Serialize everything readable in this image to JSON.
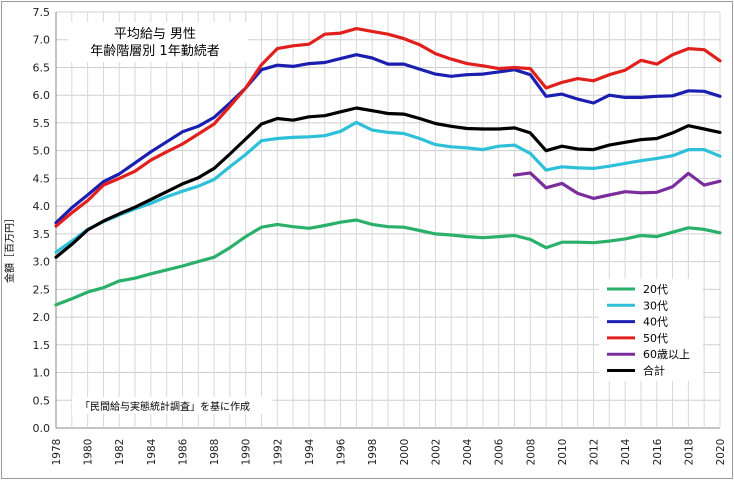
{
  "chart_data": {
    "type": "line",
    "title_line1": "平均給与 男性",
    "title_line2": "年齢階層別 1年勤続者",
    "ylabel": "金額［百万円］",
    "note": "「民間給与実態統計調査」を基に作成",
    "ylim": [
      0,
      7.5
    ],
    "ytick_step": 0.5,
    "xlim": [
      1978,
      2020
    ],
    "xtick_step": 2,
    "grid": true,
    "legend_position": "bottom-right",
    "x": [
      1978,
      1979,
      1980,
      1981,
      1982,
      1983,
      1984,
      1985,
      1986,
      1987,
      1988,
      1989,
      1990,
      1991,
      1992,
      1993,
      1994,
      1995,
      1996,
      1997,
      1998,
      1999,
      2000,
      2001,
      2002,
      2003,
      2004,
      2005,
      2006,
      2007,
      2008,
      2009,
      2010,
      2011,
      2012,
      2013,
      2014,
      2015,
      2016,
      2017,
      2018,
      2019,
      2020
    ],
    "series": [
      {
        "name": "20代",
        "color": "#2ab06a",
        "values": [
          2.22,
          2.33,
          2.45,
          2.53,
          2.65,
          2.7,
          2.78,
          2.85,
          2.92,
          3.0,
          3.08,
          3.25,
          3.45,
          3.62,
          3.67,
          3.63,
          3.6,
          3.65,
          3.71,
          3.75,
          3.67,
          3.63,
          3.62,
          3.56,
          3.5,
          3.48,
          3.45,
          3.43,
          3.45,
          3.47,
          3.4,
          3.25,
          3.35,
          3.35,
          3.34,
          3.37,
          3.41,
          3.47,
          3.45,
          3.53,
          3.61,
          3.58,
          3.52
        ]
      },
      {
        "name": "30代",
        "color": "#2ec0d8",
        "values": [
          3.17,
          3.37,
          3.58,
          3.72,
          3.84,
          3.95,
          4.05,
          4.17,
          4.27,
          4.36,
          4.48,
          4.71,
          4.93,
          5.18,
          5.22,
          5.24,
          5.25,
          5.27,
          5.35,
          5.51,
          5.37,
          5.33,
          5.31,
          5.22,
          5.11,
          5.07,
          5.05,
          5.02,
          5.08,
          5.1,
          4.95,
          4.65,
          4.71,
          4.69,
          4.68,
          4.72,
          4.77,
          4.82,
          4.86,
          4.91,
          5.02,
          5.02,
          4.9
        ]
      },
      {
        "name": "40代",
        "color": "#1b1fb0",
        "values": [
          3.7,
          3.97,
          4.2,
          4.44,
          4.58,
          4.78,
          4.98,
          5.16,
          5.34,
          5.44,
          5.6,
          5.86,
          6.13,
          6.46,
          6.54,
          6.52,
          6.57,
          6.59,
          6.66,
          6.73,
          6.67,
          6.56,
          6.56,
          6.47,
          6.38,
          6.34,
          6.37,
          6.38,
          6.42,
          6.46,
          6.37,
          5.98,
          6.02,
          5.93,
          5.86,
          6.0,
          5.96,
          5.96,
          5.98,
          5.99,
          6.08,
          6.07,
          5.98
        ]
      },
      {
        "name": "50代",
        "color": "#e0201c",
        "values": [
          3.64,
          3.88,
          4.1,
          4.38,
          4.5,
          4.63,
          4.83,
          4.98,
          5.12,
          5.3,
          5.48,
          5.8,
          6.13,
          6.55,
          6.84,
          6.89,
          6.92,
          7.1,
          7.12,
          7.2,
          7.15,
          7.1,
          7.02,
          6.91,
          6.75,
          6.65,
          6.57,
          6.53,
          6.48,
          6.5,
          6.48,
          6.13,
          6.23,
          6.3,
          6.26,
          6.37,
          6.45,
          6.63,
          6.56,
          6.73,
          6.84,
          6.82,
          6.62
        ]
      },
      {
        "name": "60歳以上",
        "color": "#7a2d9c",
        "values": [
          null,
          null,
          null,
          null,
          null,
          null,
          null,
          null,
          null,
          null,
          null,
          null,
          null,
          null,
          null,
          null,
          null,
          null,
          null,
          null,
          null,
          null,
          null,
          null,
          null,
          null,
          null,
          null,
          null,
          4.56,
          4.6,
          4.33,
          4.41,
          4.23,
          4.14,
          4.2,
          4.26,
          4.24,
          4.25,
          4.35,
          4.59,
          4.38,
          4.45
        ]
      },
      {
        "name": "合計",
        "color": "#000000",
        "values": [
          3.08,
          3.31,
          3.57,
          3.73,
          3.86,
          3.98,
          4.12,
          4.26,
          4.4,
          4.51,
          4.68,
          4.94,
          5.21,
          5.48,
          5.58,
          5.55,
          5.61,
          5.63,
          5.7,
          5.77,
          5.72,
          5.67,
          5.66,
          5.58,
          5.49,
          5.44,
          5.4,
          5.39,
          5.39,
          5.41,
          5.32,
          5.0,
          5.08,
          5.03,
          5.02,
          5.1,
          5.15,
          5.2,
          5.22,
          5.32,
          5.45,
          5.39,
          5.33
        ]
      }
    ]
  }
}
